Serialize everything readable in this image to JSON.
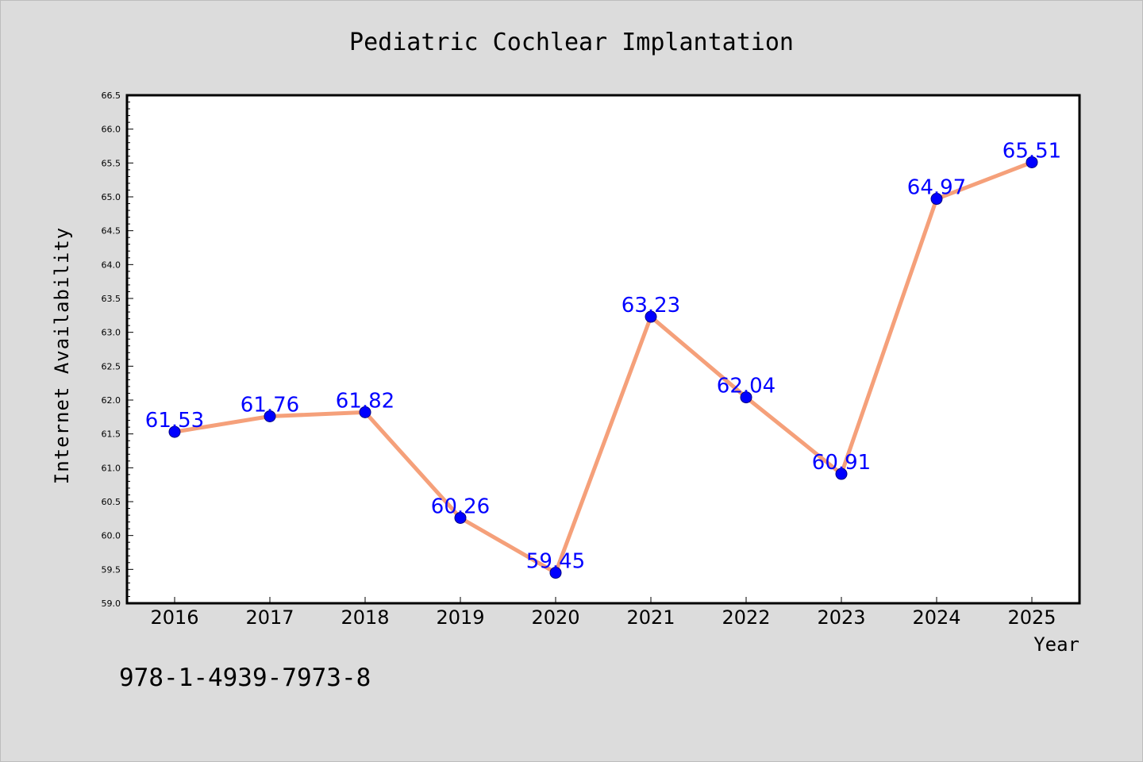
{
  "chart_data": {
    "type": "line",
    "title": "Pediatric Cochlear Implantation",
    "xlabel": "Year",
    "ylabel": "Internet Availability",
    "categories": [
      "2016",
      "2017",
      "2018",
      "2019",
      "2020",
      "2021",
      "2022",
      "2023",
      "2024",
      "2025"
    ],
    "values": [
      61.53,
      61.76,
      61.82,
      60.26,
      59.45,
      63.23,
      62.04,
      60.91,
      64.97,
      65.51
    ],
    "data_labels": [
      "61.53",
      "61.76",
      "61.82",
      "60.26",
      "59.45",
      "63.23",
      "62.04",
      "60.91",
      "64.97",
      "65.51"
    ],
    "ylim": [
      59.0,
      66.5
    ],
    "yticks": [
      "59.0",
      "59.5",
      "60.0",
      "60.5",
      "61.0",
      "61.5",
      "62.0",
      "62.5",
      "63.0",
      "63.5",
      "64.0",
      "64.5",
      "65.0",
      "65.5",
      "66.0",
      "66.5"
    ],
    "grid": false,
    "line_color": "#f5a07a",
    "marker_color": "#0000ff",
    "label_color": "#0000ff"
  },
  "annotation": "978-1-4939-7973-8"
}
